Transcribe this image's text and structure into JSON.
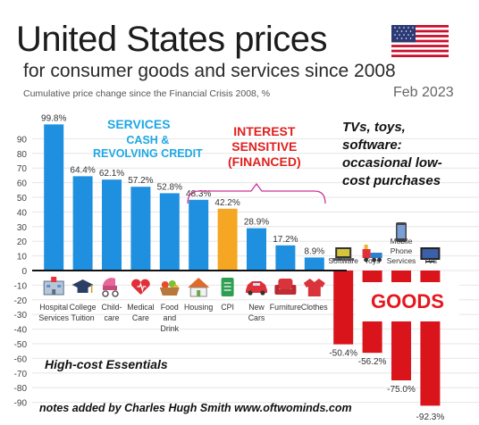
{
  "header": {
    "title": "United States prices",
    "subtitle": "for consumer goods and services since 2008",
    "axis_caption": "Cumulative price change since the Financial Crisis 2008, %",
    "date": "Feb 2023"
  },
  "annotations": {
    "services": "SERVICES",
    "services_sub_1": "CASH &",
    "services_sub_2": "REVOLVING CREDIT",
    "interest_1": "INTEREST",
    "interest_2": "SENSITIVE",
    "interest_3": "(FINANCED)",
    "tvs_1": "TVs, toys,",
    "tvs_2": "software:",
    "tvs_3": "occasional low-",
    "tvs_4": "cost purchases",
    "goods": "GOODS",
    "essentials": "High-cost Essentials",
    "credit": "notes added by Charles Hugh Smith  www.oftwominds.com"
  },
  "colors": {
    "blue": "#1f8fe0",
    "orange": "#f5a623",
    "red": "#d9141b",
    "interest_bracket": "#cc3399"
  },
  "chart_data": {
    "type": "bar",
    "ylim": [
      -95,
      100
    ],
    "yticks": [
      90,
      80,
      70,
      60,
      50,
      40,
      30,
      20,
      10,
      0,
      -10,
      -20,
      -30,
      -40,
      -50,
      -60,
      -70,
      -80,
      -90
    ],
    "grid": true,
    "series": [
      {
        "values": [
          99.8,
          64.4,
          62.1,
          57.2,
          52.8,
          48.3,
          42.2,
          28.9,
          17.2,
          8.9,
          -50.4,
          -56.2,
          -75.0,
          -92.3
        ],
        "labels": [
          "99.8%",
          "64.4%",
          "62.1%",
          "57.2%",
          "52.8%",
          "48.3%",
          "42.2%",
          "28.9%",
          "17.2%",
          "8.9%",
          "-50.4%",
          "-56.2%",
          "-75.0%",
          "-92.3%"
        ]
      }
    ],
    "categories": [
      {
        "lines": [
          "Hospital",
          "Services"
        ],
        "icon": "hospital-icon",
        "color": "blue"
      },
      {
        "lines": [
          "College",
          "Tuition"
        ],
        "icon": "graduation-cap-icon",
        "color": "blue"
      },
      {
        "lines": [
          "Child-",
          "care"
        ],
        "icon": "stroller-icon",
        "color": "blue"
      },
      {
        "lines": [
          "Medical",
          "Care"
        ],
        "icon": "heart-stethoscope-icon",
        "color": "blue"
      },
      {
        "lines": [
          "Food",
          "and",
          "Drink"
        ],
        "icon": "food-basket-icon",
        "color": "blue"
      },
      {
        "lines": [
          "Housing"
        ],
        "icon": "house-icon",
        "color": "blue"
      },
      {
        "lines": [
          "CPI"
        ],
        "icon": "receipt-icon",
        "color": "orange"
      },
      {
        "lines": [
          "New",
          "Cars"
        ],
        "icon": "car-icon",
        "color": "blue"
      },
      {
        "lines": [
          "Furniture"
        ],
        "icon": "armchair-icon",
        "color": "blue"
      },
      {
        "lines": [
          "Clothes"
        ],
        "icon": "shirt-icon",
        "color": "blue"
      },
      {
        "lines": [
          "Software"
        ],
        "icon": "laptop-icon",
        "color": "red"
      },
      {
        "lines": [
          "Toys"
        ],
        "icon": "toy-train-icon",
        "color": "red"
      },
      {
        "lines": [
          "Mobile",
          "Phone",
          "Services"
        ],
        "icon": "mobile-phone-icon",
        "color": "red"
      },
      {
        "lines": [
          "TVs"
        ],
        "icon": "tv-icon",
        "color": "red"
      }
    ]
  }
}
